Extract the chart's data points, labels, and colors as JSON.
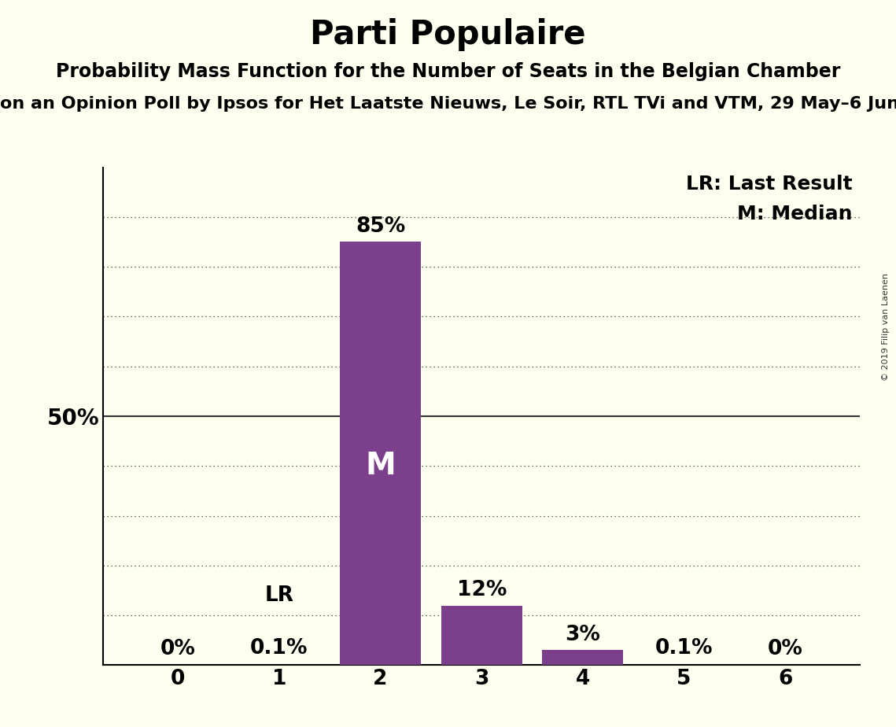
{
  "title": "Parti Populaire",
  "subtitle": "Probability Mass Function for the Number of Seats in the Belgian Chamber",
  "source_line": "on an Opinion Poll by Ipsos for Het Laatste Nieuws, Le Soir, RTL TVi and VTM, 29 May–6 Jun",
  "copyright": "© 2019 Filip van Laenen",
  "categories": [
    0,
    1,
    2,
    3,
    4,
    5,
    6
  ],
  "values": [
    0.0,
    0.1,
    85.0,
    12.0,
    3.0,
    0.1,
    0.0
  ],
  "bar_color": "#7B3F8C",
  "background_color": "#FFFFF0",
  "label_50": "50%",
  "median_seat": 2,
  "lr_seat": 1,
  "legend_lr": "LR: Last Result",
  "legend_m": "M: Median",
  "ylim": [
    0,
    100
  ],
  "title_fontsize": 30,
  "subtitle_fontsize": 17,
  "source_fontsize": 16,
  "bar_label_fontsize": 19,
  "axis_tick_fontsize": 19,
  "annotation_fontsize": 18,
  "ytick_fontsize": 20,
  "m_label_fontsize": 28,
  "lr_label_fontsize": 19,
  "dotted_levels": [
    10,
    20,
    30,
    40,
    60,
    70,
    80,
    90
  ],
  "copyright_fontsize": 8
}
